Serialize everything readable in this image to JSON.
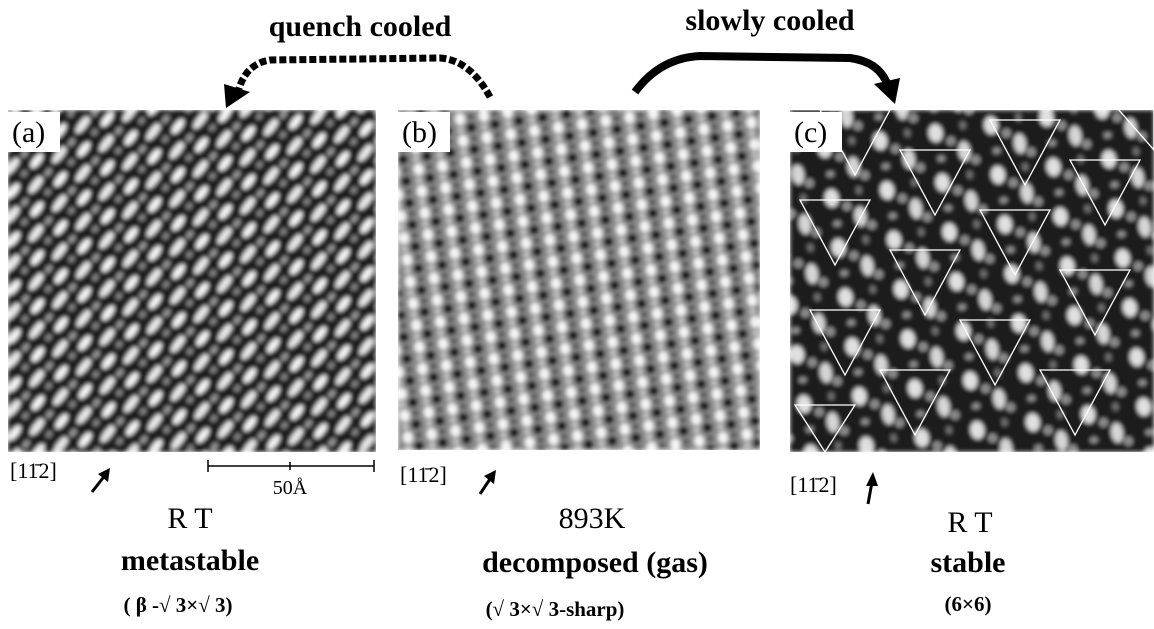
{
  "arrows": {
    "left": "quench cooled",
    "right": "slowly cooled"
  },
  "panels": [
    {
      "label": "(a)",
      "direction": "[11̄2]",
      "title": "R T",
      "subtitle": "metastable",
      "note": "( β -√ 3×√ 3)",
      "scale_bar": "50Å"
    },
    {
      "label": "(b)",
      "direction": "[11̄2]",
      "title": "893K",
      "subtitle": "decomposed (gas)",
      "note": "(√ 3×√ 3-sharp)"
    },
    {
      "label": "(c)",
      "direction": "[11̄2]",
      "title": "R T",
      "subtitle": "stable",
      "note": "(6×6)"
    }
  ]
}
